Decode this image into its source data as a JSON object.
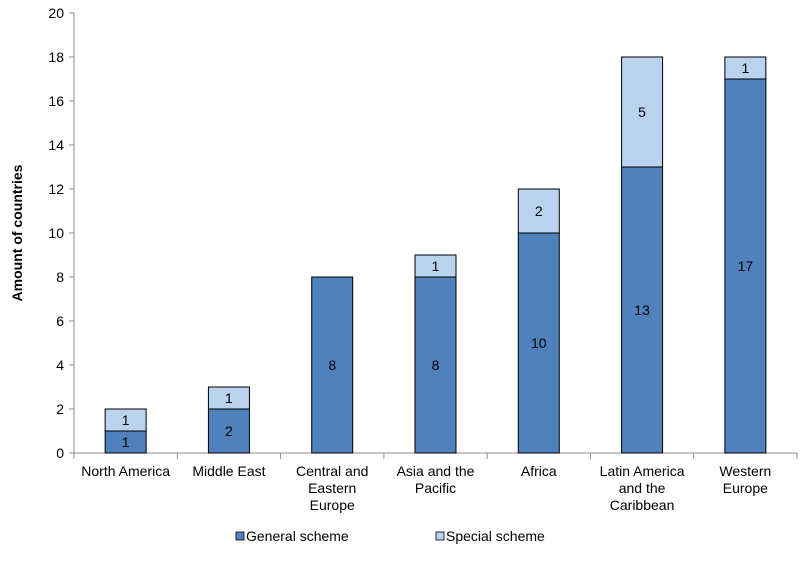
{
  "chart_data": {
    "type": "bar",
    "stacked": true,
    "categories": [
      [
        "North America"
      ],
      [
        "Middle East"
      ],
      [
        "Central and",
        "Eastern",
        "Europe"
      ],
      [
        "Asia and the",
        "Pacific"
      ],
      [
        "Africa"
      ],
      [
        "Latin America",
        "and the",
        "Caribbean"
      ],
      [
        "Western",
        "Europe"
      ]
    ],
    "series": [
      {
        "name": "General scheme",
        "values": [
          1,
          2,
          8,
          8,
          10,
          13,
          17
        ],
        "color": "#4f81bd"
      },
      {
        "name": "Special scheme",
        "values": [
          1,
          1,
          0,
          1,
          2,
          5,
          1
        ],
        "color": "#b9d3ee"
      }
    ],
    "ylabel": "Amount of countries",
    "xlabel": "",
    "ylim": [
      0,
      20
    ],
    "yticks": [
      0,
      2,
      4,
      6,
      8,
      10,
      12,
      14,
      16,
      18,
      20
    ],
    "grid": false,
    "legend": "bottom"
  }
}
